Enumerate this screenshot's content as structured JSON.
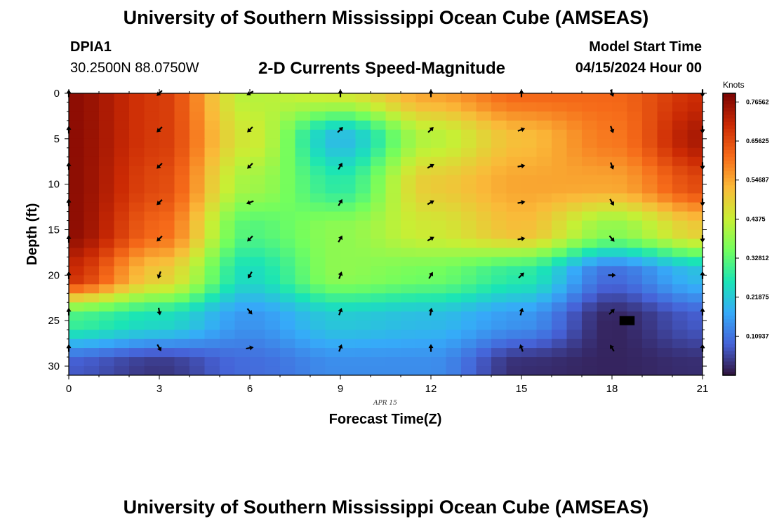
{
  "header": {
    "title": "University of Southern Mississippi Ocean Cube (AMSEAS)",
    "station": "DPIA1",
    "coords": "30.2500N  88.0750W",
    "subtitle": "2-D Currents Speed-Magnitude",
    "model_start_label": "Model Start Time",
    "model_start_value": "04/15/2024 Hour 00"
  },
  "footer": {
    "title": "University of Southern Mississippi Ocean Cube (AMSEAS)"
  },
  "colors": {
    "background": "#ffffff",
    "arrow": "#000000",
    "colormap": [
      "#30123b",
      "#4662d7",
      "#36aaf9",
      "#1ae4b6",
      "#72fe5e",
      "#c8ef34",
      "#faba39",
      "#f66b19",
      "#cb2a04",
      "#7a0403"
    ]
  },
  "chart_data": {
    "type": "heatmap",
    "title": "2-D Currents Speed-Magnitude",
    "xlabel": "Forecast Time(Z)",
    "ylabel": "Depth (ft)",
    "xlim": [
      0,
      21
    ],
    "ylim": [
      0,
      31
    ],
    "x_ticks": [
      0,
      3,
      6,
      9,
      12,
      15,
      18,
      21
    ],
    "x_tick_labels": [
      "0",
      "3",
      "6",
      "9",
      "12",
      "15",
      "18",
      "21"
    ],
    "y_ticks": [
      0,
      5,
      10,
      15,
      20,
      25,
      30
    ],
    "y_tick_labels": [
      "0",
      "5",
      "10",
      "15",
      "20",
      "25",
      "30"
    ],
    "date_annotation": "APR 15",
    "colorbar": {
      "unit": "Knots",
      "min": 0,
      "max": 0.79,
      "tick_values": [
        0.10937,
        0.21875,
        0.32812,
        0.4375,
        0.54687,
        0.65625,
        0.76562
      ],
      "tick_labels": [
        "0.10937",
        "0.21875",
        "0.32812",
        "0.4375",
        "0.54687",
        "0.65625",
        "0.76562"
      ]
    },
    "grid_times": [
      0,
      3,
      6,
      9,
      12,
      15,
      18,
      21
    ],
    "grid_depths": [
      0,
      5,
      10,
      15,
      20,
      25,
      30
    ],
    "speed_knots": [
      [
        0.77,
        0.68,
        0.42,
        0.45,
        0.55,
        0.62,
        0.62,
        0.7
      ],
      [
        0.77,
        0.68,
        0.45,
        0.2,
        0.42,
        0.52,
        0.6,
        0.74
      ],
      [
        0.77,
        0.66,
        0.4,
        0.28,
        0.5,
        0.55,
        0.55,
        0.66
      ],
      [
        0.77,
        0.62,
        0.32,
        0.38,
        0.45,
        0.52,
        0.38,
        0.5
      ],
      [
        0.7,
        0.5,
        0.25,
        0.38,
        0.35,
        0.28,
        0.1,
        0.2
      ],
      [
        0.3,
        0.25,
        0.15,
        0.22,
        0.2,
        0.15,
        0.02,
        0.08
      ],
      [
        0.08,
        0.04,
        0.1,
        0.14,
        0.14,
        0.03,
        0.02,
        0.03
      ]
    ],
    "missing_cell": {
      "time": 18.5,
      "depth": 25
    },
    "arrows": {
      "times": [
        0,
        3,
        6,
        9,
        12,
        15,
        18,
        21
      ],
      "depths": [
        0,
        4,
        8,
        12,
        16,
        20,
        24,
        28
      ],
      "direction_deg": [
        [
          0,
          225,
          240,
          0,
          0,
          0,
          160,
          180
        ],
        [
          0,
          225,
          225,
          45,
          45,
          70,
          160,
          180
        ],
        [
          0,
          225,
          225,
          30,
          60,
          80,
          160,
          180
        ],
        [
          0,
          225,
          250,
          30,
          60,
          80,
          150,
          180
        ],
        [
          0,
          225,
          225,
          30,
          60,
          80,
          140,
          180
        ],
        [
          0,
          200,
          210,
          20,
          30,
          45,
          90,
          0
        ],
        [
          0,
          170,
          140,
          20,
          10,
          15,
          45,
          0
        ],
        [
          0,
          150,
          80,
          20,
          0,
          340,
          330,
          0
        ]
      ]
    }
  }
}
